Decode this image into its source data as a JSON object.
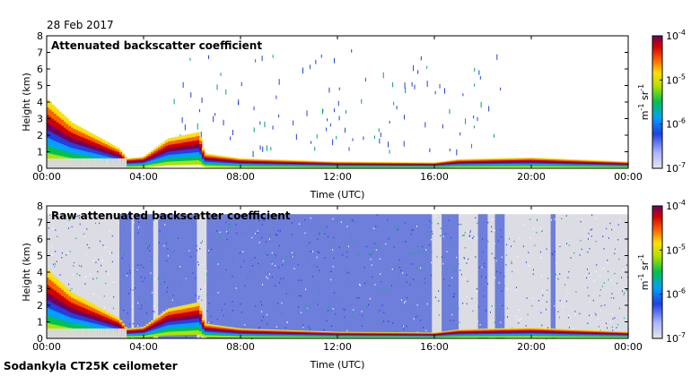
{
  "header": {
    "date": "28 Feb 2017",
    "instrument": "Sodankyla CT25K ceilometer"
  },
  "chart_data": [
    {
      "type": "heatmap",
      "title": "Attenuated backscatter coefficient",
      "xlabel": "Time (UTC)",
      "ylabel": "Height (km)",
      "x_ticks": [
        "00:00",
        "04:00",
        "08:00",
        "12:00",
        "16:00",
        "20:00",
        "00:00"
      ],
      "y_ticks": [
        "0",
        "1",
        "2",
        "3",
        "4",
        "5",
        "6",
        "7",
        "8"
      ],
      "xlim_hours": [
        0,
        24
      ],
      "ylim_km": [
        0,
        8
      ],
      "colorbar": {
        "scale": "log",
        "unit_base": "m",
        "unit_exp1": "-1",
        "unit_mid": "sr",
        "unit_exp2": "-1",
        "ticks": [
          {
            "base": "10",
            "exp": "-4"
          },
          {
            "base": "10",
            "exp": "-5"
          },
          {
            "base": "10",
            "exp": "-6"
          },
          {
            "base": "10",
            "exp": "-7"
          }
        ]
      },
      "features": {
        "surface_layer_top_km": [
          [
            0,
            4.2
          ],
          [
            1,
            2.8
          ],
          [
            2,
            2.0
          ],
          [
            3,
            1.2
          ],
          [
            3.3,
            0.6
          ],
          [
            4,
            0.7
          ],
          [
            5,
            1.8
          ],
          [
            6.3,
            2.2
          ],
          [
            6.5,
            0.9
          ],
          [
            8,
            0.6
          ],
          [
            12,
            0.4
          ],
          [
            16,
            0.35
          ],
          [
            17,
            0.55
          ],
          [
            20,
            0.65
          ],
          [
            24,
            0.4
          ]
        ],
        "noise": false
      }
    },
    {
      "type": "heatmap",
      "title": "Raw attenuated backscatter coefficient",
      "xlabel": "Time (UTC)",
      "ylabel": "Height (km)",
      "x_ticks": [
        "00:00",
        "04:00",
        "08:00",
        "12:00",
        "16:00",
        "20:00",
        "00:00"
      ],
      "y_ticks": [
        "0",
        "1",
        "2",
        "3",
        "4",
        "5",
        "6",
        "7",
        "8"
      ],
      "xlim_hours": [
        0,
        24
      ],
      "ylim_km": [
        0,
        8
      ],
      "colorbar": {
        "scale": "log",
        "unit_base": "m",
        "unit_exp1": "-1",
        "unit_mid": "sr",
        "unit_exp2": "-1",
        "ticks": [
          {
            "base": "10",
            "exp": "-4"
          },
          {
            "base": "10",
            "exp": "-5"
          },
          {
            "base": "10",
            "exp": "-6"
          },
          {
            "base": "10",
            "exp": "-7"
          }
        ]
      },
      "features": {
        "surface_layer_top_km": [
          [
            0,
            4.2
          ],
          [
            1,
            2.8
          ],
          [
            2,
            2.0
          ],
          [
            3,
            1.2
          ],
          [
            3.3,
            0.6
          ],
          [
            4,
            0.7
          ],
          [
            5,
            1.8
          ],
          [
            6.3,
            2.2
          ],
          [
            6.5,
            0.9
          ],
          [
            8,
            0.6
          ],
          [
            12,
            0.4
          ],
          [
            16,
            0.35
          ],
          [
            17,
            0.55
          ],
          [
            20,
            0.65
          ],
          [
            24,
            0.4
          ]
        ],
        "noise": true
      }
    }
  ]
}
